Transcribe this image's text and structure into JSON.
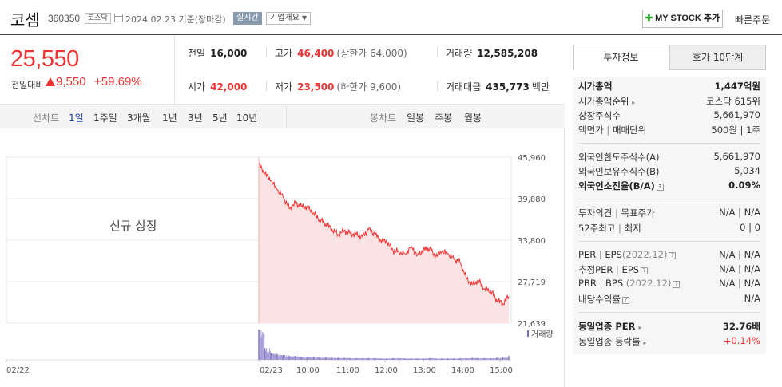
{
  "header": {
    "name": "코셈",
    "code": "360350",
    "market": "코스닥",
    "date": "2024.02.23",
    "basis": "기준(장마감)",
    "realtime": "실시간",
    "company_info": "기업개요",
    "mystock": "MY STOCK 추가",
    "fast_order": "빠른주문"
  },
  "price": {
    "current": "25,550",
    "prev_label": "전일대비",
    "change": "9,550",
    "rate": "+59.69%"
  },
  "stats": {
    "prev_close_label": "전일",
    "prev_close": "16,000",
    "high_label": "고가",
    "high": "46,400",
    "upper_limit": "(상한가 64,000)",
    "volume_label": "거래량",
    "volume": "12,585,208",
    "open_label": "시가",
    "open": "42,000",
    "low_label": "저가",
    "low": "23,500",
    "lower_limit": "(하한가 9,600)",
    "amount_label": "거래대금",
    "amount": "435,773",
    "amount_unit": "백만"
  },
  "periods": {
    "line_label": "선차트",
    "items": [
      "1일",
      "1주일",
      "3개월",
      "1년",
      "3년",
      "5년",
      "10년"
    ],
    "selected": "1일",
    "candle_label": "봉차트",
    "candle_items": [
      "일봉",
      "주봉",
      "월봉"
    ]
  },
  "chart_data": {
    "type": "area",
    "new_listing_label": "신규 상장",
    "y_ticks": [
      "45,960",
      "39,880",
      "33,800",
      "27,719",
      "21,639"
    ],
    "ylim": [
      21639,
      45960
    ],
    "x_labels": [
      "02/22",
      "02/23",
      "10:00",
      "11:00",
      "12:00",
      "13:00",
      "14:00",
      "15:00"
    ],
    "volume_label": "거래량",
    "series": [
      {
        "x": [
          "09:00",
          "09:05",
          "09:10",
          "09:15",
          "09:20",
          "09:30",
          "09:40",
          "09:50",
          "10:00",
          "10:10",
          "10:20",
          "10:30",
          "10:40",
          "10:50",
          "11:00",
          "11:10",
          "11:20",
          "11:30",
          "11:40",
          "11:50",
          "12:00",
          "12:10",
          "12:20",
          "12:30",
          "12:40",
          "12:50",
          "13:00",
          "13:10",
          "13:20",
          "13:30",
          "13:40",
          "13:50",
          "14:00",
          "14:10",
          "14:20",
          "14:30",
          "14:40",
          "14:50",
          "15:00",
          "15:10",
          "15:20",
          "15:30"
        ],
        "values": [
          44800,
          43600,
          42500,
          41200,
          40100,
          38400,
          39200,
          38800,
          38600,
          37800,
          36800,
          36200,
          35400,
          34600,
          35200,
          34800,
          34600,
          34300,
          35400,
          34700,
          33700,
          33600,
          32300,
          32100,
          31800,
          32900,
          31600,
          32400,
          32600,
          31400,
          32100,
          31800,
          31000,
          30600,
          28300,
          27300,
          27900,
          26700,
          26400,
          25100,
          24500,
          25550
        ]
      }
    ],
    "volume_series": [
      9.0,
      3.5,
      2.0,
      1.6,
      1.4,
      1.2,
      1.1,
      0.9,
      0.8,
      0.8,
      0.7,
      0.7,
      0.6,
      0.6,
      0.6,
      0.5,
      0.5,
      0.5,
      0.5,
      0.5,
      0.4,
      0.4,
      0.5,
      0.5,
      0.4,
      0.4,
      0.4,
      0.4,
      0.5,
      0.4,
      0.4,
      0.4,
      0.4,
      0.5,
      0.5,
      0.6,
      0.5,
      0.5,
      0.5,
      0.6,
      0.7,
      1.2
    ]
  },
  "panel": {
    "tab_invest": "투자정보",
    "tab_quote": "호가 10단계",
    "market_cap_label": "시가총액",
    "market_cap": "1,447억원",
    "cap_rank_label": "시가총액순위",
    "cap_rank": "코스닥 615위",
    "shares_label": "상장주식수",
    "shares": "5,661,970",
    "par_label": "액면가",
    "unit_label": "매매단위",
    "par_unit": "500원 | 1주",
    "foreign_limit_label": "외국인한도주식수(A)",
    "foreign_limit": "5,661,970",
    "foreign_hold_label": "외국인보유주식수(B)",
    "foreign_hold": "5,034",
    "foreign_ratio_label": "외국인소진율(B/A)",
    "foreign_ratio": "0.09%",
    "opinion_label": "투자의견",
    "target_label": "목표주가",
    "opinion_val": "N/A | N/A",
    "w52_label": "52주최고",
    "w52_low_label": "최저",
    "w52_val": "0 | 0",
    "per_label": "PER",
    "eps_label": "EPS",
    "eps_year": "(2022.12)",
    "per_val": "N/A | N/A",
    "est_per_label": "추정PER",
    "est_eps_label": "EPS",
    "est_val": "N/A | N/A",
    "pbr_label": "PBR",
    "bps_label": "BPS",
    "bps_year": "(2022.12)",
    "pbr_val": "N/A | N/A",
    "div_label": "배당수익률",
    "div_val": "N/A",
    "sector_per_label": "동일업종 PER",
    "sector_per": "32.76배",
    "sector_rate_label": "동일업종 등락률",
    "sector_rate": "+0.14%"
  }
}
